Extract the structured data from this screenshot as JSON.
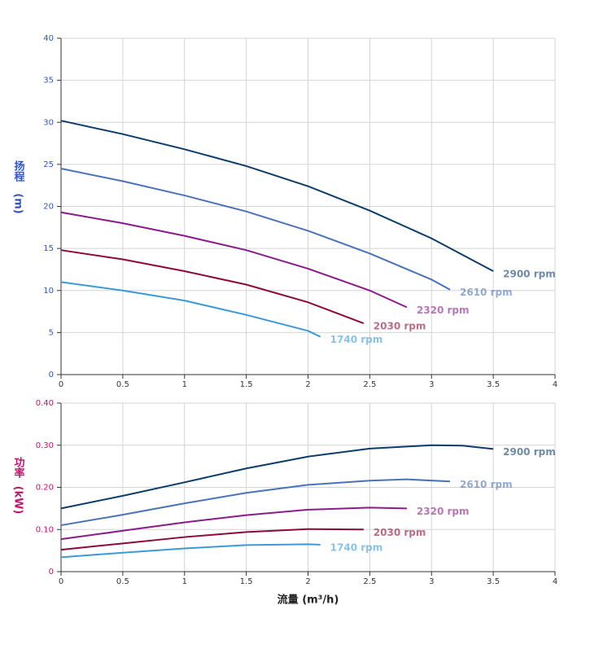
{
  "chart_data": [
    {
      "type": "line",
      "ylabel": "扬程",
      "yunit": "(m)",
      "axis_color": "#3355bb",
      "xlim": [
        0,
        4
      ],
      "xticks": [
        0,
        0.5,
        1,
        1.5,
        2,
        2.5,
        3,
        3.5,
        4
      ],
      "ylim": [
        0,
        40
      ],
      "yticks": [
        0,
        5,
        10,
        15,
        20,
        25,
        30,
        35,
        40
      ],
      "grid": true,
      "series": [
        {
          "name": "2900 rpm",
          "color": "#0b3d6b",
          "x": [
            0,
            0.5,
            1,
            1.5,
            2,
            2.5,
            3,
            3.5
          ],
          "values": [
            30.2,
            28.6,
            26.8,
            24.8,
            22.4,
            19.5,
            16.2,
            12.3
          ]
        },
        {
          "name": "2610 rpm",
          "color": "#4a72b8",
          "x": [
            0,
            0.5,
            1,
            1.5,
            2,
            2.5,
            3,
            3.15
          ],
          "values": [
            24.5,
            23.0,
            21.3,
            19.4,
            17.1,
            14.4,
            11.3,
            10.1
          ]
        },
        {
          "name": "2320 rpm",
          "color": "#8b1a8b",
          "x": [
            0,
            0.5,
            1,
            1.5,
            2,
            2.5,
            2.8
          ],
          "values": [
            19.3,
            18.0,
            16.5,
            14.8,
            12.6,
            10.0,
            8.0
          ]
        },
        {
          "name": "2030 rpm",
          "color": "#8b0a3a",
          "x": [
            0,
            0.5,
            1,
            1.5,
            2,
            2.45
          ],
          "values": [
            14.8,
            13.7,
            12.3,
            10.7,
            8.6,
            6.1
          ]
        },
        {
          "name": "1740 rpm",
          "color": "#3a9ad9",
          "x": [
            0,
            0.5,
            1,
            1.5,
            2,
            2.1
          ],
          "values": [
            11.0,
            10.0,
            8.8,
            7.1,
            5.2,
            4.5
          ]
        }
      ]
    },
    {
      "type": "line",
      "ylabel": "功率",
      "yunit": "(kW)",
      "xlabel": "流量 (m³/h)",
      "axis_color": "#c0156e",
      "xlim": [
        0,
        4
      ],
      "xticks": [
        0,
        0.5,
        1,
        1.5,
        2,
        2.5,
        3,
        3.5,
        4
      ],
      "ylim": [
        0,
        0.4
      ],
      "yticks": [
        0,
        {
          "value": 0.1,
          "label": "0.10"
        },
        {
          "value": 0.2,
          "label": "0.20"
        },
        {
          "value": 0.3,
          "label": "0.30"
        },
        {
          "value": 0.4,
          "label": "0.40"
        }
      ],
      "grid": true,
      "series": [
        {
          "name": "2900 rpm",
          "color": "#0b3d6b",
          "x": [
            0,
            0.5,
            1,
            1.5,
            2,
            2.5,
            3,
            3.25,
            3.5
          ],
          "values": [
            0.15,
            0.18,
            0.212,
            0.245,
            0.273,
            0.292,
            0.3,
            0.299,
            0.291
          ]
        },
        {
          "name": "2610 rpm",
          "color": "#4a72b8",
          "x": [
            0,
            0.5,
            1,
            1.5,
            2,
            2.5,
            2.8,
            3.15
          ],
          "values": [
            0.11,
            0.135,
            0.162,
            0.187,
            0.206,
            0.216,
            0.219,
            0.214
          ]
        },
        {
          "name": "2320 rpm",
          "color": "#8b1a8b",
          "x": [
            0,
            0.5,
            1,
            1.5,
            2,
            2.5,
            2.8
          ],
          "values": [
            0.077,
            0.097,
            0.117,
            0.134,
            0.147,
            0.152,
            0.15
          ]
        },
        {
          "name": "2030 rpm",
          "color": "#8b0a3a",
          "x": [
            0,
            0.5,
            1,
            1.5,
            2,
            2.45
          ],
          "values": [
            0.052,
            0.067,
            0.082,
            0.094,
            0.101,
            0.1
          ]
        },
        {
          "name": "1740 rpm",
          "color": "#3a9ad9",
          "x": [
            0,
            0.5,
            1,
            1.5,
            2,
            2.1
          ],
          "values": [
            0.034,
            0.045,
            0.055,
            0.063,
            0.065,
            0.064
          ]
        }
      ]
    }
  ]
}
